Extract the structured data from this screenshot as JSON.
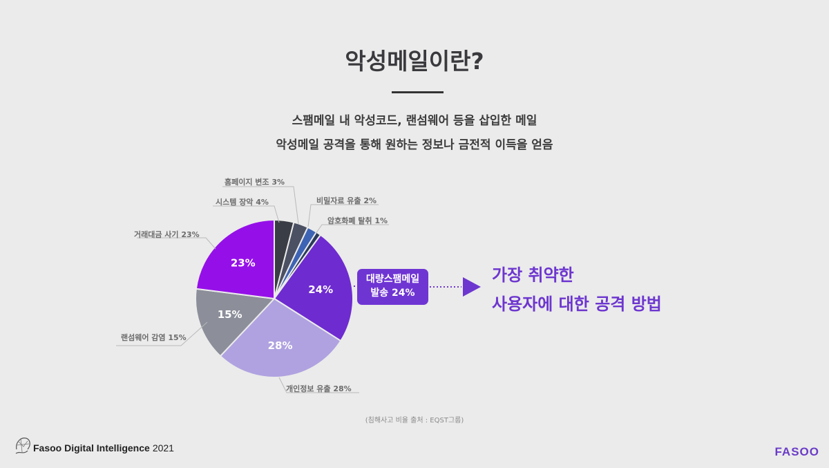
{
  "slide": {
    "title": "악성메일이란?",
    "subtitle_lines": [
      "스팸메일 내 악성코드, 랜섬웨어 등을 삽입한 메일",
      "악성메일 공격을 통해 원하는 정보나 금전적 이득을 얻음"
    ],
    "callout": {
      "line1": "대량스팸메일",
      "line2": "발송 24%"
    },
    "headline": {
      "line1": "가장 취약한",
      "line2": "사용자에 대한 공격 방법"
    },
    "source": "(침해사고 비율 출처 : EQST그룹)",
    "footer": {
      "company": "Fasoo Digital Intelligence",
      "year": "2021",
      "brand": "FASOO"
    },
    "colors": {
      "accent": "#6d36cf",
      "background": "#ebebeb"
    }
  },
  "chart_data": {
    "type": "pie",
    "title": "침해사고 비율",
    "start_angle": "12 o'clock, clockwise",
    "slices": [
      {
        "label": "시스템 장악",
        "value": 4,
        "display": "시스템 장악 4%",
        "color": "#3a3d45"
      },
      {
        "label": "홈페이지 변조",
        "value": 3,
        "display": "홈페이지 변조 3%",
        "color": "#4b5063"
      },
      {
        "label": "비밀자료 유출",
        "value": 2,
        "display": "비밀자료 유출 2%",
        "color": "#3d63b4"
      },
      {
        "label": "암호화폐 탈취",
        "value": 1,
        "display": "암호화폐 탈취 1%",
        "color": "#2a3a5a"
      },
      {
        "label": "대량스팸메일 발송",
        "value": 24,
        "display": "24%",
        "color": "#6e2bd0"
      },
      {
        "label": "개인정보 유출",
        "value": 28,
        "display": "개인정보 유출 28%",
        "color": "#b0a2e0"
      },
      {
        "label": "랜섬웨어 감염",
        "value": 15,
        "display": "랜섬웨어 감염 15%",
        "color": "#8c8f9a"
      },
      {
        "label": "거래대금 사기",
        "value": 23,
        "display": "거래대금 사기 23%",
        "color": "#9510e8"
      }
    ],
    "inner_labels": [
      "24%",
      "28%",
      "15%",
      "23%"
    ],
    "legend": "none (leader-line labels)",
    "source": "EQST그룹"
  }
}
